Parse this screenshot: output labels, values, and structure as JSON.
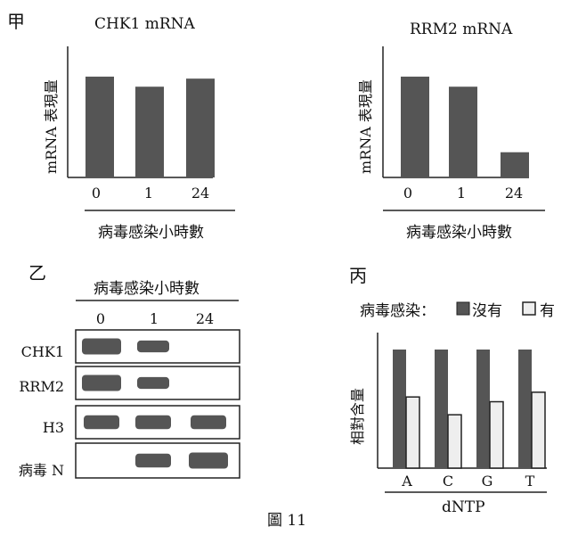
{
  "panel_labels": {
    "a": "甲",
    "b": "乙",
    "c": "丙"
  },
  "caption": "圖 11",
  "colors": {
    "dark": "#555555",
    "light": "#eeeeee",
    "axis": "#222222"
  },
  "chart_data": [
    {
      "type": "bar",
      "title": "CHK1 mRNA",
      "ylabel": "mRNA 表現量",
      "xlabel": "病毒感染小時數",
      "categories": [
        "0",
        "1",
        "24"
      ],
      "values": [
        1.0,
        0.9,
        0.98
      ],
      "ylim": [
        0,
        1.3
      ]
    },
    {
      "type": "bar",
      "title": "RRM2 mRNA",
      "ylabel": "mRNA 表現量",
      "xlabel": "病毒感染小時數",
      "categories": [
        "0",
        "1",
        "24"
      ],
      "values": [
        1.0,
        0.9,
        0.25
      ],
      "ylim": [
        0,
        1.3
      ]
    },
    {
      "type": "bar",
      "ylabel": "相對含量",
      "xlabel": "dNTP",
      "categories": [
        "A",
        "C",
        "G",
        "T"
      ],
      "series": [
        {
          "name": "沒有",
          "values": [
            1.0,
            1.0,
            1.0,
            1.0
          ]
        },
        {
          "name": "有",
          "values": [
            0.6,
            0.45,
            0.56,
            0.64
          ]
        }
      ],
      "legend_title": "病毒感染："
    }
  ],
  "blot": {
    "xlabel": "病毒感染小時數",
    "timepoints": [
      "0",
      "1",
      "24"
    ],
    "rows": [
      {
        "label": "CHK1",
        "bands": [
          1.0,
          0.6,
          0
        ]
      },
      {
        "label": "RRM2",
        "bands": [
          1.0,
          0.6,
          0
        ]
      },
      {
        "label": "H3",
        "bands": [
          0.8,
          0.8,
          0.8
        ]
      },
      {
        "label": "病毒 N",
        "bands": [
          0,
          0.8,
          1.0
        ]
      }
    ]
  }
}
